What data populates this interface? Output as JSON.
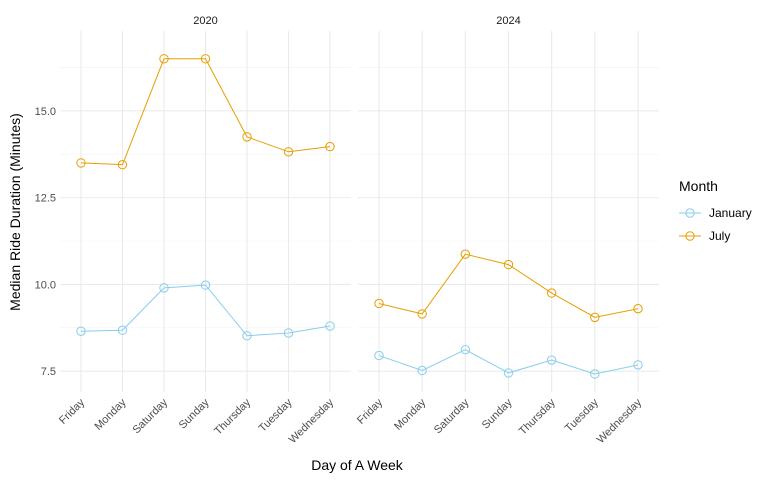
{
  "chart_data": {
    "type": "line",
    "xlabel": "Day of A Week",
    "ylabel": "Median Ride Duration (Minutes)",
    "categories": [
      "Friday",
      "Monday",
      "Saturday",
      "Sunday",
      "Thursday",
      "Tuesday",
      "Wednesday"
    ],
    "ylim": [
      6.9,
      17.3
    ],
    "y_ticks": [
      7.5,
      10.0,
      12.5,
      15.0
    ],
    "y_tick_labels": [
      "7.5",
      "10.0",
      "12.5",
      "15.0"
    ],
    "grid": true,
    "legend": {
      "title": "Month",
      "position": "right",
      "entries": [
        {
          "name": "January",
          "color": "#87CEEB"
        },
        {
          "name": "July",
          "color": "#E69F00"
        }
      ]
    },
    "panels": [
      {
        "title": "2020",
        "series": [
          {
            "name": "January",
            "values": [
              8.65,
              8.68,
              9.9,
              9.98,
              8.52,
              8.6,
              8.8
            ]
          },
          {
            "name": "July",
            "values": [
              13.5,
              13.45,
              16.5,
              16.5,
              14.25,
              13.82,
              13.97
            ]
          }
        ]
      },
      {
        "title": "2024",
        "series": [
          {
            "name": "January",
            "values": [
              7.95,
              7.52,
              8.12,
              7.45,
              7.82,
              7.42,
              7.68
            ]
          },
          {
            "name": "July",
            "values": [
              9.45,
              9.15,
              10.87,
              10.57,
              9.75,
              9.05,
              9.3
            ]
          }
        ]
      }
    ]
  }
}
